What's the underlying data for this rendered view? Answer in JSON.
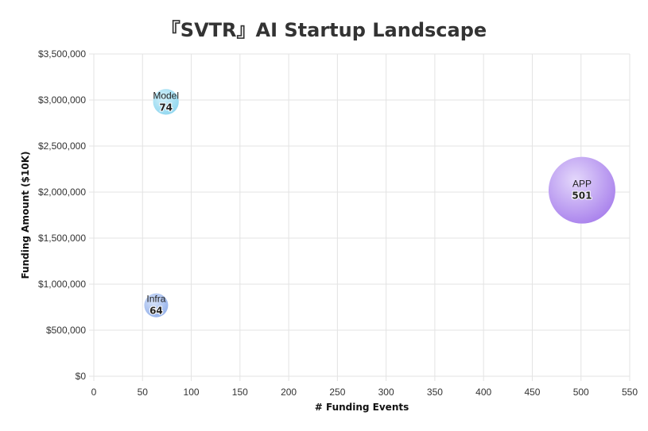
{
  "chart_data": {
    "type": "scatter",
    "title": "『SVTR』AI Startup Landscape",
    "xlabel": "# Funding Events",
    "ylabel": "Funding Amount ($10K)",
    "xlim": [
      0,
      550
    ],
    "ylim": [
      0,
      3500000
    ],
    "x_ticks": [
      "0",
      "50",
      "100",
      "150",
      "200",
      "250",
      "300",
      "350",
      "400",
      "450",
      "500",
      "550"
    ],
    "y_ticks": [
      "$0",
      "$500,000",
      "$1,000,000",
      "$1,500,000",
      "$2,000,000",
      "$2,500,000",
      "$3,000,000",
      "$3,500,000"
    ],
    "grid": true,
    "points": [
      {
        "name": "Model",
        "x": 74,
        "y": 2980000,
        "label": "74",
        "color_center": "#d4f2fb",
        "color_edge": "#8fd6ef"
      },
      {
        "name": "APP",
        "x": 501,
        "y": 2020000,
        "label": "501",
        "color_center": "#e4d8fb",
        "color_edge": "#a880ec"
      },
      {
        "name": "Infra",
        "x": 64,
        "y": 770000,
        "label": "64",
        "color_center": "#d8e4fa",
        "color_edge": "#93b0ea"
      }
    ]
  }
}
